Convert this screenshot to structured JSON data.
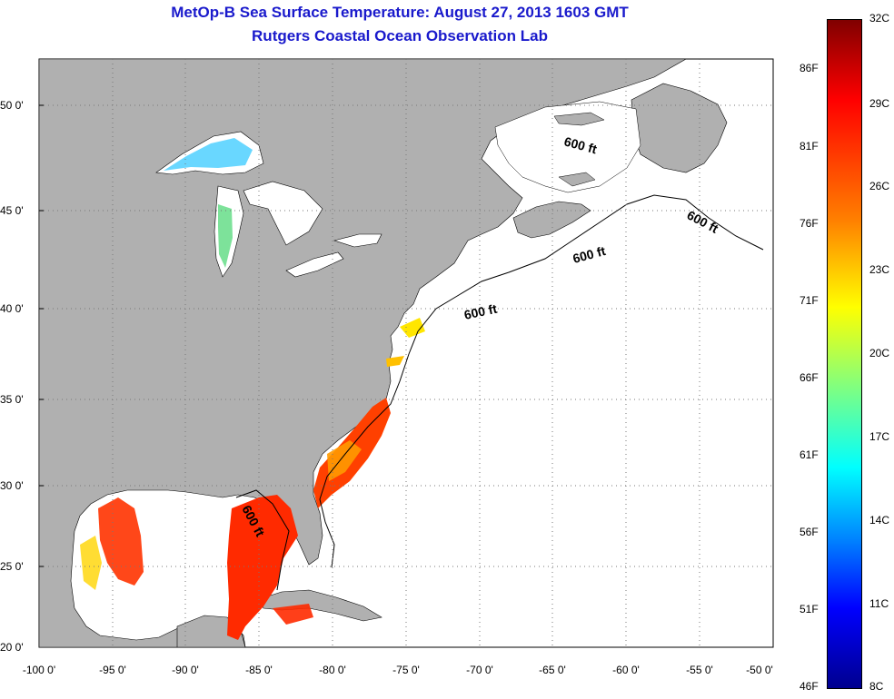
{
  "title": {
    "line1": "MetOp-B Sea Surface Temperature:  August 27, 2013 1603 GMT",
    "line2": "Rutgers Coastal Ocean Observation Lab"
  },
  "map": {
    "lon_labels": [
      "-100 0'",
      "-95 0'",
      "-90 0'",
      "-85 0'",
      "-80 0'",
      "-75 0'",
      "-70 0'",
      "-65 0'",
      "-60 0'",
      "-55 0'",
      "-50 0'"
    ],
    "lat_labels": [
      "50 0'",
      "45 0'",
      "40 0'",
      "35 0'",
      "30 0'",
      "25 0'",
      "20 0'"
    ],
    "contour_label": "600 ft",
    "colors": {
      "land": "#b0b0b0",
      "ocean": "#ffffff",
      "warm_sst": "#ff2a00",
      "mid_sst": "#ff8c00",
      "cool_sst": "#ffe600"
    }
  },
  "colorbar": {
    "celsius": [
      "32C",
      "29C",
      "26C",
      "23C",
      "20C",
      "17C",
      "14C",
      "11C",
      "8C"
    ],
    "fahrenheit": [
      "86F",
      "81F",
      "76F",
      "71F",
      "66F",
      "61F",
      "56F",
      "51F",
      "46F"
    ]
  }
}
